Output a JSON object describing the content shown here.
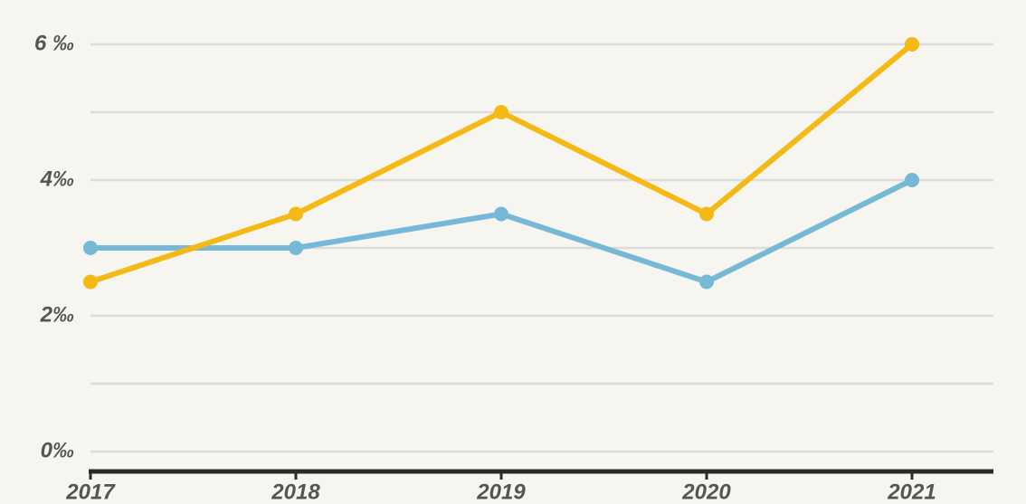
{
  "chart_data": {
    "type": "line",
    "categories": [
      "2017",
      "2018",
      "2019",
      "2020",
      "2021"
    ],
    "series": [
      {
        "color": "#75b9d6",
        "values": [
          3,
          3,
          3.5,
          2.5,
          4
        ]
      },
      {
        "color": "#f5b915",
        "values": [
          2.5,
          3.5,
          5,
          3.5,
          6
        ]
      }
    ],
    "ylim": [
      0,
      6
    ],
    "yticks": [
      {
        "value": 0,
        "label": "0‰"
      },
      {
        "value": 2,
        "label": "2‰"
      },
      {
        "value": 4,
        "label": "4‰"
      },
      {
        "value": 6,
        "label": "6 ‰"
      }
    ],
    "yminorticks": [
      1,
      3,
      5
    ],
    "grid": true
  }
}
